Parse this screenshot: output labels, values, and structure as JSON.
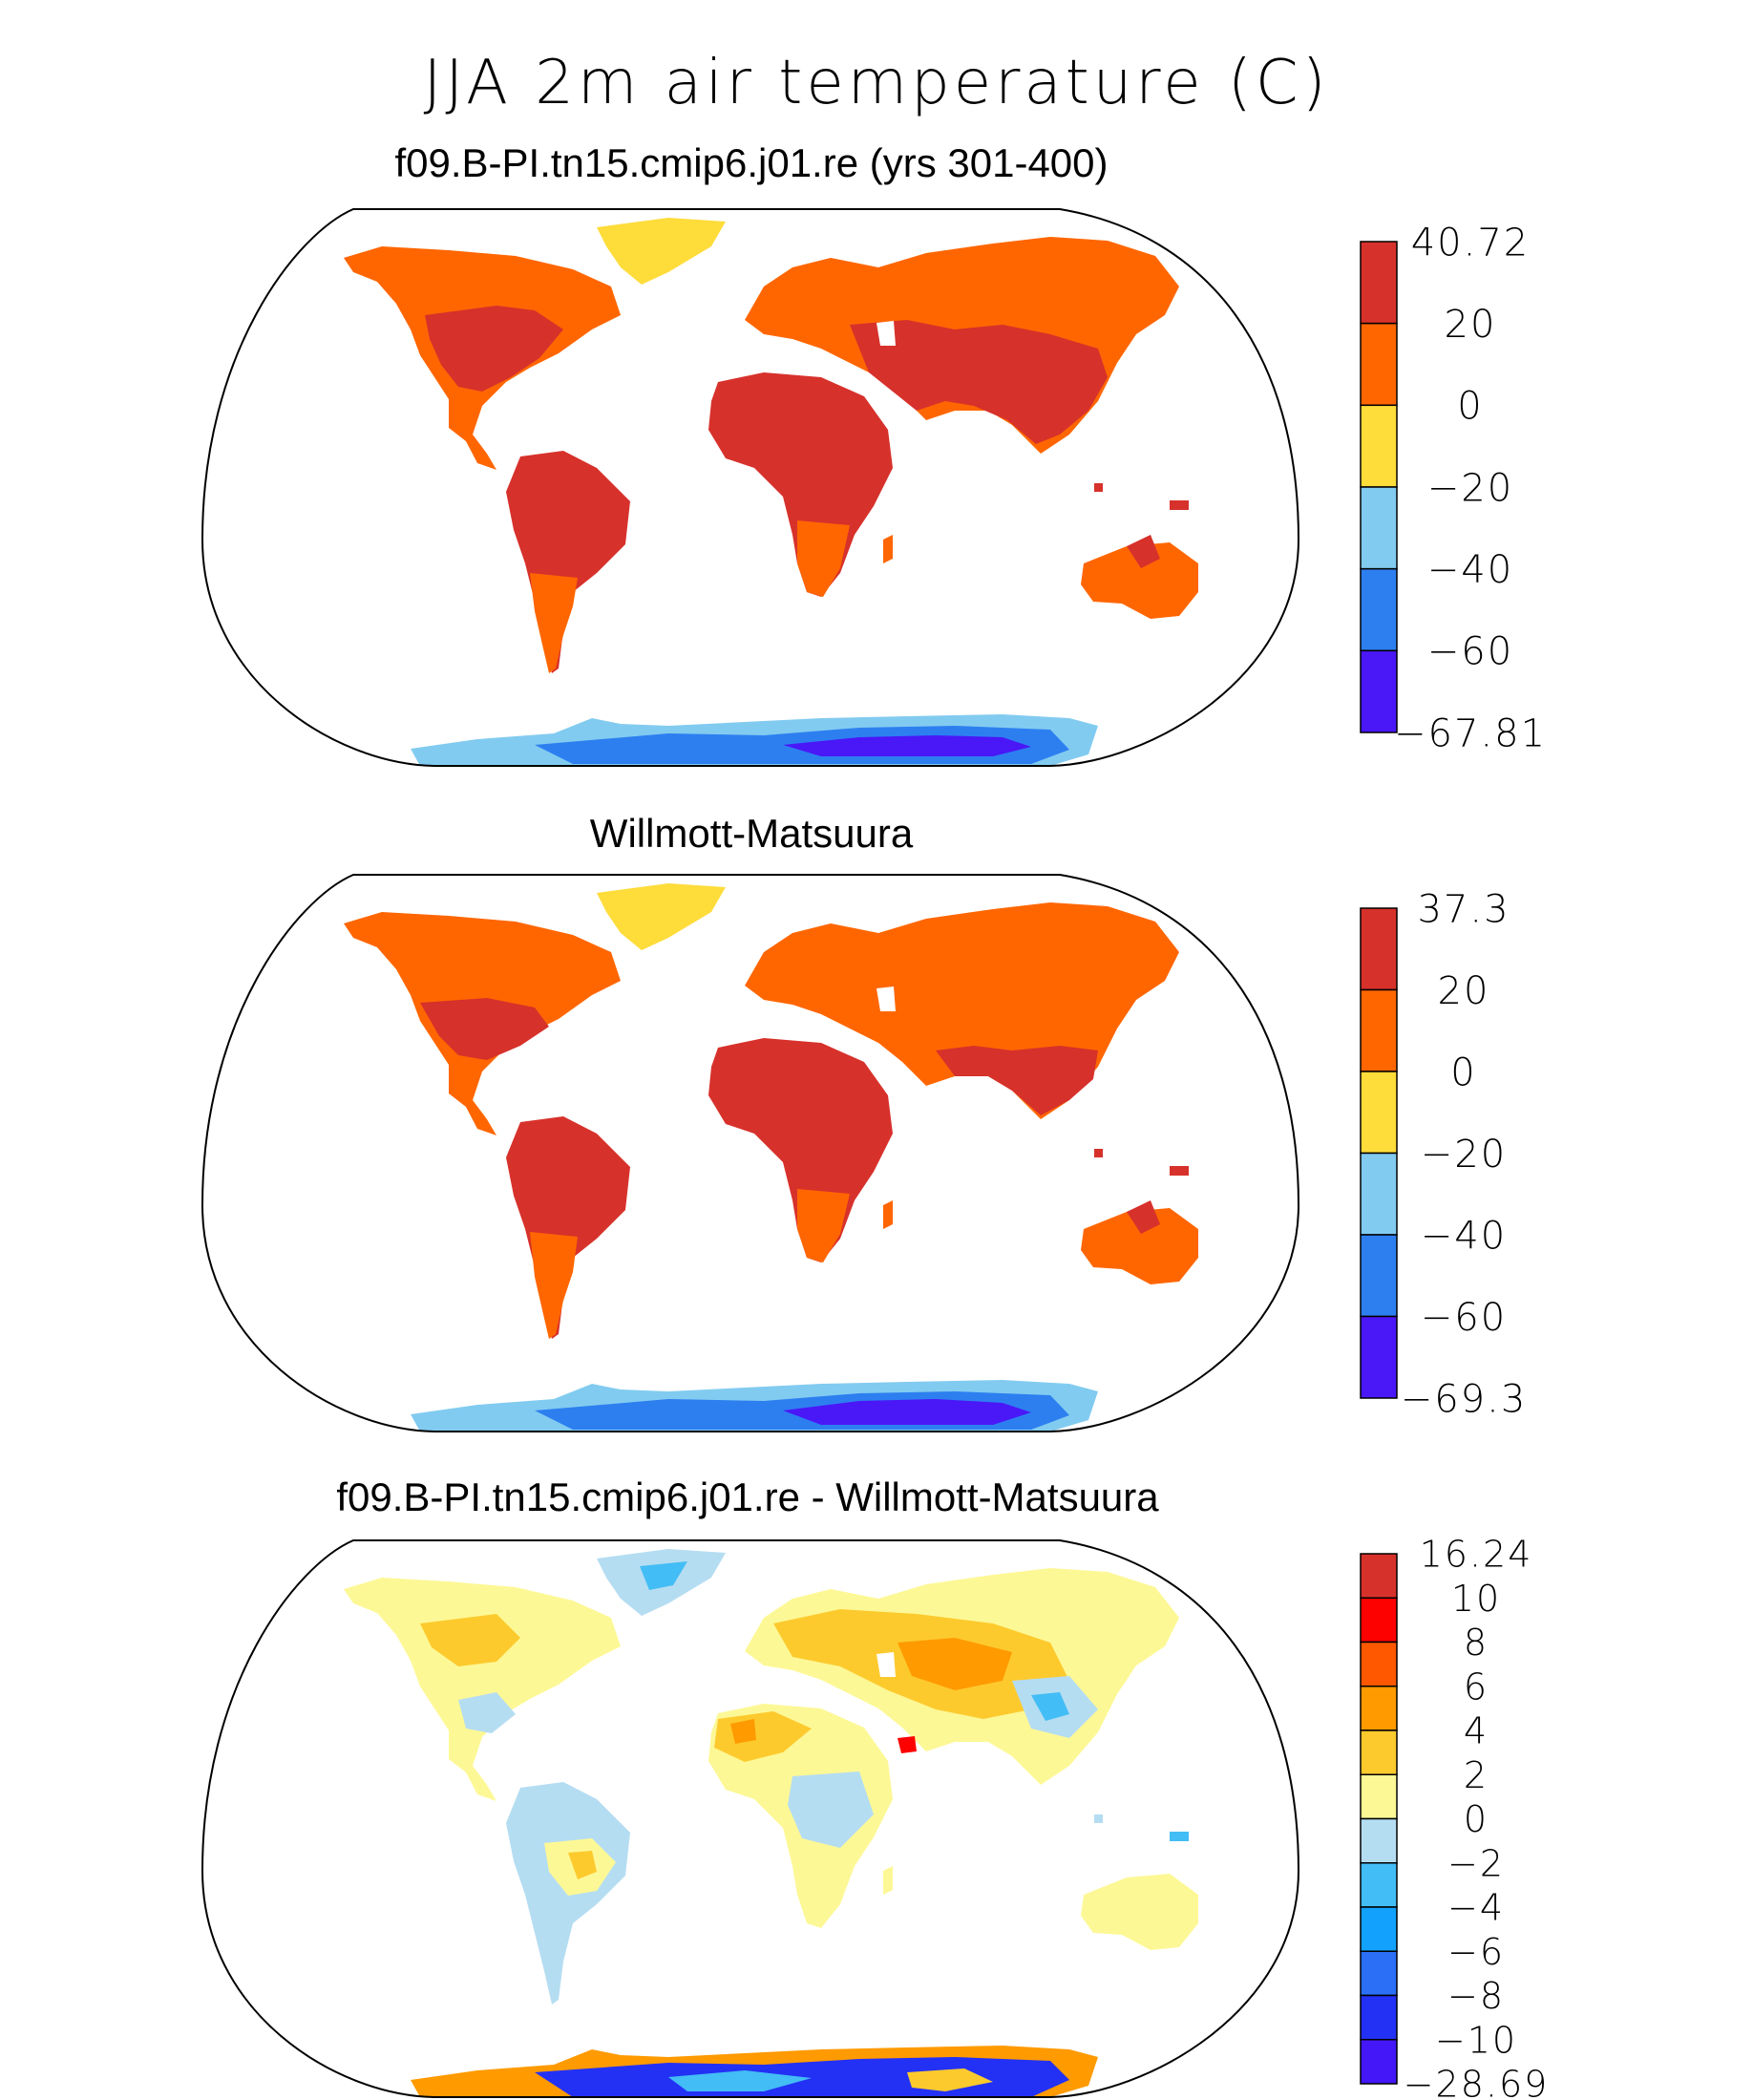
{
  "figure": {
    "title": "JJA 2m air temperature (C)"
  },
  "panels": [
    {
      "id": "model",
      "title": "f09.B-PI.tn15.cmip6.j01.re (yrs 301-400)",
      "colorbar": {
        "labels": [
          "40.72",
          "20",
          "0",
          "−20",
          "−40",
          "−60",
          "−67.81"
        ],
        "colors": [
          "#d7312b",
          "#ff6600",
          "#fedc3a",
          "#82cbf0",
          "#2d7ff0",
          "#4a17f7"
        ]
      }
    },
    {
      "id": "obs",
      "title": "Willmott-Matsuura",
      "colorbar": {
        "labels": [
          "37.3",
          "20",
          "0",
          "−20",
          "−40",
          "−60",
          "−69.3"
        ],
        "colors": [
          "#d7312b",
          "#ff6600",
          "#fedc3a",
          "#82cbf0",
          "#2d7ff0",
          "#4a17f7"
        ]
      }
    },
    {
      "id": "diff",
      "title": "f09.B-PI.tn15.cmip6.j01.re - Willmott-Matsuura",
      "colorbar": {
        "labels": [
          "16.24",
          "10",
          "8",
          "6",
          "4",
          "2",
          "0",
          "−2",
          "−4",
          "−6",
          "−8",
          "−10",
          "−28.69"
        ],
        "colors": [
          "#d7312b",
          "#fd0000",
          "#ff5800",
          "#ff9a00",
          "#fdca2e",
          "#fdf896",
          "#b5ddf2",
          "#43bdf5",
          "#12a2fe",
          "#2b6ff7",
          "#2331f5",
          "#4317f7"
        ]
      }
    }
  ]
}
